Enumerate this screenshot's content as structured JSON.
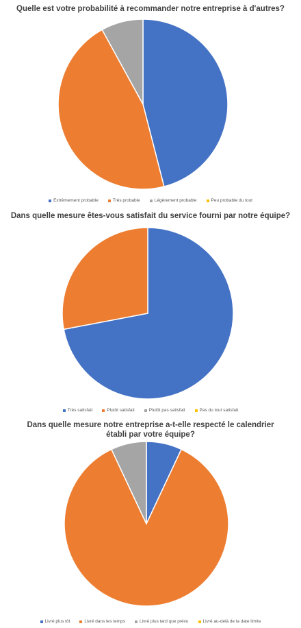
{
  "colors": {
    "blue": "#4472C4",
    "orange": "#ED7D31",
    "gray": "#A5A5A5",
    "yellow": "#FFC000"
  },
  "chart_data": [
    {
      "type": "pie",
      "title": "Quelle est votre probabilité à recommander notre entreprise à d'autres?",
      "categories": [
        "Extrêmement probable",
        "Très probable",
        "Légèrement probable",
        "Peu probable du tout"
      ],
      "values": [
        46,
        46,
        8,
        0
      ],
      "legend": "bottom"
    },
    {
      "type": "pie",
      "title": "Dans quelle mesure êtes-vous satisfait du service fourni par notre équipe?",
      "categories": [
        "Très satisfait",
        "Plutôt satisfait",
        "Plutôt pas satisfait",
        "Pas du tout satisfait"
      ],
      "values": [
        72,
        28,
        0,
        0
      ],
      "legend": "bottom"
    },
    {
      "type": "pie",
      "title": "Dans quelle mesure notre entreprise a-t-elle respecté le calendrier établi par votre équipe?",
      "categories": [
        "Livré plus tôt",
        "Livré dans les temps",
        "Livré plus tard que prévu",
        "Livré au-delà de la date limite"
      ],
      "values": [
        7,
        86,
        7,
        0
      ],
      "legend": "bottom"
    }
  ]
}
